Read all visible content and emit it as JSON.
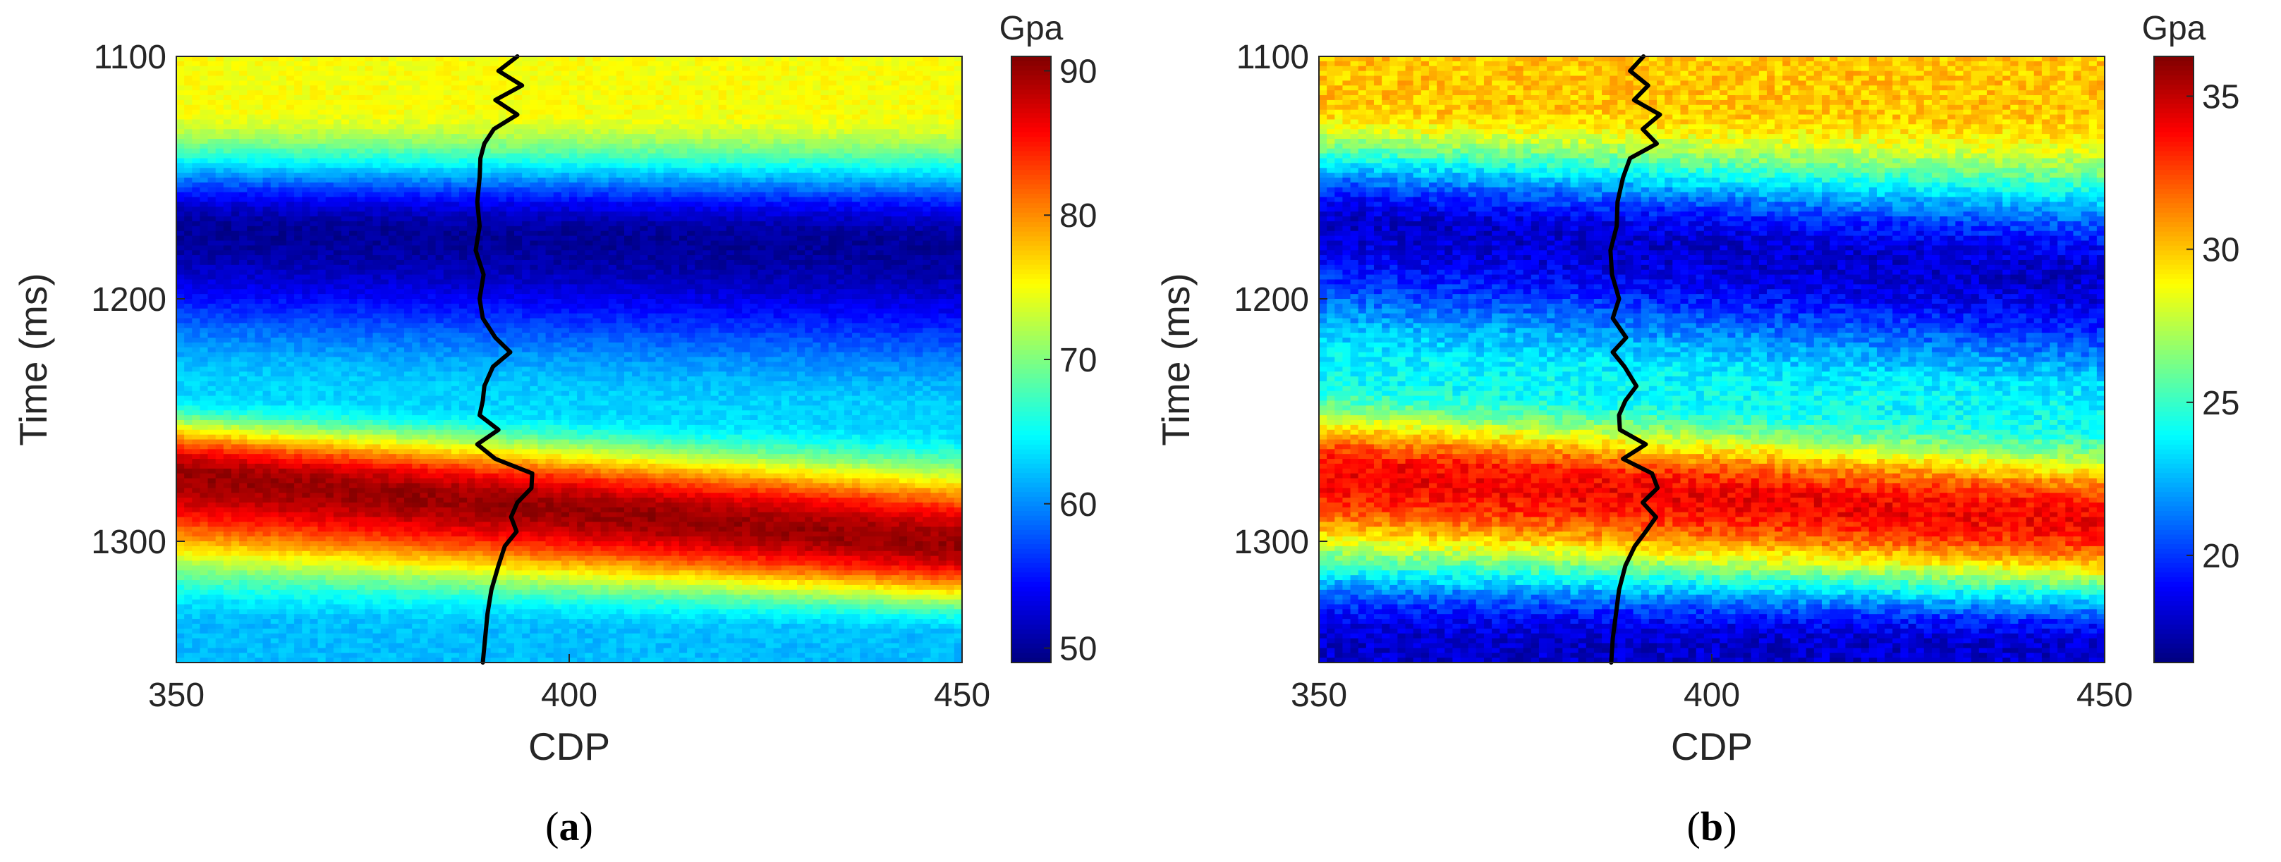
{
  "chart_data": [
    {
      "type": "heatmap",
      "panel_label": {
        "open": "(",
        "letter": "a",
        "close": ")"
      },
      "xlabel": "CDP",
      "ylabel": "Time (ms)",
      "xlim": [
        350,
        450
      ],
      "ylim": [
        1100,
        1350
      ],
      "y_reversed": true,
      "xticks": [
        350,
        400,
        450
      ],
      "yticks": [
        1100,
        1200,
        1300
      ],
      "colormap": "jet",
      "colorbar": {
        "unit": "Gpa",
        "range": [
          49,
          91
        ],
        "ticks": [
          50,
          60,
          70,
          80,
          90
        ]
      },
      "layers": [
        {
          "name": "upper bright band",
          "time_left": 1120,
          "time_right": 1122,
          "value": 75
        },
        {
          "name": "low-value zone",
          "time_left": 1172,
          "time_right": 1178,
          "value": 50
        },
        {
          "name": "lower cyan zone",
          "time_left": 1238,
          "time_right": 1252,
          "value": 63
        },
        {
          "name": "high-value layer",
          "time_left": 1272,
          "time_right": 1302,
          "value": 90
        },
        {
          "name": "bottom zone",
          "time_left": 1335,
          "time_right": 1340,
          "value": 62
        }
      ],
      "well_log": {
        "color": "#000000",
        "points": [
          {
            "time": 1100,
            "cdp": 393.4
          },
          {
            "time": 1106,
            "cdp": 391.0
          },
          {
            "time": 1112,
            "cdp": 394.0
          },
          {
            "time": 1118,
            "cdp": 390.6
          },
          {
            "time": 1124,
            "cdp": 393.4
          },
          {
            "time": 1130,
            "cdp": 390.4
          },
          {
            "time": 1136,
            "cdp": 389.2
          },
          {
            "time": 1142,
            "cdp": 388.7
          },
          {
            "time": 1150,
            "cdp": 388.6
          },
          {
            "time": 1160,
            "cdp": 388.3
          },
          {
            "time": 1170,
            "cdp": 388.6
          },
          {
            "time": 1180,
            "cdp": 388.1
          },
          {
            "time": 1190,
            "cdp": 389.1
          },
          {
            "time": 1200,
            "cdp": 388.6
          },
          {
            "time": 1208,
            "cdp": 389.0
          },
          {
            "time": 1216,
            "cdp": 390.6
          },
          {
            "time": 1222,
            "cdp": 392.5
          },
          {
            "time": 1228,
            "cdp": 390.3
          },
          {
            "time": 1236,
            "cdp": 389.2
          },
          {
            "time": 1242,
            "cdp": 389.0
          },
          {
            "time": 1248,
            "cdp": 388.6
          },
          {
            "time": 1254,
            "cdp": 391.0
          },
          {
            "time": 1260,
            "cdp": 388.3
          },
          {
            "time": 1266,
            "cdp": 390.6
          },
          {
            "time": 1272,
            "cdp": 395.3
          },
          {
            "time": 1278,
            "cdp": 395.2
          },
          {
            "time": 1284,
            "cdp": 393.4
          },
          {
            "time": 1290,
            "cdp": 392.6
          },
          {
            "time": 1296,
            "cdp": 393.3
          },
          {
            "time": 1302,
            "cdp": 391.8
          },
          {
            "time": 1310,
            "cdp": 391.0
          },
          {
            "time": 1320,
            "cdp": 390.1
          },
          {
            "time": 1330,
            "cdp": 389.6
          },
          {
            "time": 1340,
            "cdp": 389.3
          },
          {
            "time": 1350,
            "cdp": 389.0
          }
        ]
      }
    },
    {
      "type": "heatmap",
      "panel_label": {
        "open": "(",
        "letter": "b",
        "close": ")"
      },
      "xlabel": "CDP",
      "ylabel": "Time (ms)",
      "xlim": [
        350,
        450
      ],
      "ylim": [
        1100,
        1350
      ],
      "y_reversed": true,
      "xticks": [
        350,
        400,
        450
      ],
      "yticks": [
        1100,
        1200,
        1300
      ],
      "colormap": "jet",
      "colorbar": {
        "unit": "Gpa",
        "range": [
          16.5,
          36.3
        ],
        "ticks": [
          20,
          25,
          30,
          35
        ]
      },
      "layers": [
        {
          "name": "upper bright band",
          "time_left": 1118,
          "time_right": 1122,
          "value": 30
        },
        {
          "name": "low-value zone",
          "time_left": 1168,
          "time_right": 1192,
          "value": 18
        },
        {
          "name": "middle cyan zone",
          "time_left": 1232,
          "time_right": 1250,
          "value": 24
        },
        {
          "name": "high-value layer",
          "time_left": 1272,
          "time_right": 1292,
          "value": 34
        },
        {
          "name": "bottom low zone",
          "time_left": 1342,
          "time_right": 1345,
          "value": 18
        }
      ],
      "well_log": {
        "color": "#000000",
        "points": [
          {
            "time": 1100,
            "cdp": 391.3
          },
          {
            "time": 1106,
            "cdp": 389.6
          },
          {
            "time": 1112,
            "cdp": 391.9
          },
          {
            "time": 1118,
            "cdp": 390.1
          },
          {
            "time": 1124,
            "cdp": 393.4
          },
          {
            "time": 1130,
            "cdp": 391.2
          },
          {
            "time": 1136,
            "cdp": 393.0
          },
          {
            "time": 1142,
            "cdp": 389.6
          },
          {
            "time": 1150,
            "cdp": 388.7
          },
          {
            "time": 1160,
            "cdp": 388.0
          },
          {
            "time": 1170,
            "cdp": 387.9
          },
          {
            "time": 1180,
            "cdp": 387.1
          },
          {
            "time": 1190,
            "cdp": 387.3
          },
          {
            "time": 1200,
            "cdp": 388.2
          },
          {
            "time": 1208,
            "cdp": 387.4
          },
          {
            "time": 1216,
            "cdp": 389.1
          },
          {
            "time": 1222,
            "cdp": 387.4
          },
          {
            "time": 1228,
            "cdp": 388.9
          },
          {
            "time": 1236,
            "cdp": 390.4
          },
          {
            "time": 1242,
            "cdp": 389.0
          },
          {
            "time": 1248,
            "cdp": 388.2
          },
          {
            "time": 1254,
            "cdp": 388.3
          },
          {
            "time": 1260,
            "cdp": 391.6
          },
          {
            "time": 1266,
            "cdp": 388.7
          },
          {
            "time": 1272,
            "cdp": 392.4
          },
          {
            "time": 1278,
            "cdp": 393.1
          },
          {
            "time": 1284,
            "cdp": 391.2
          },
          {
            "time": 1290,
            "cdp": 392.9
          },
          {
            "time": 1296,
            "cdp": 391.6
          },
          {
            "time": 1302,
            "cdp": 390.2
          },
          {
            "time": 1310,
            "cdp": 389.0
          },
          {
            "time": 1320,
            "cdp": 388.2
          },
          {
            "time": 1330,
            "cdp": 387.8
          },
          {
            "time": 1340,
            "cdp": 387.4
          },
          {
            "time": 1350,
            "cdp": 387.2
          }
        ]
      }
    }
  ]
}
